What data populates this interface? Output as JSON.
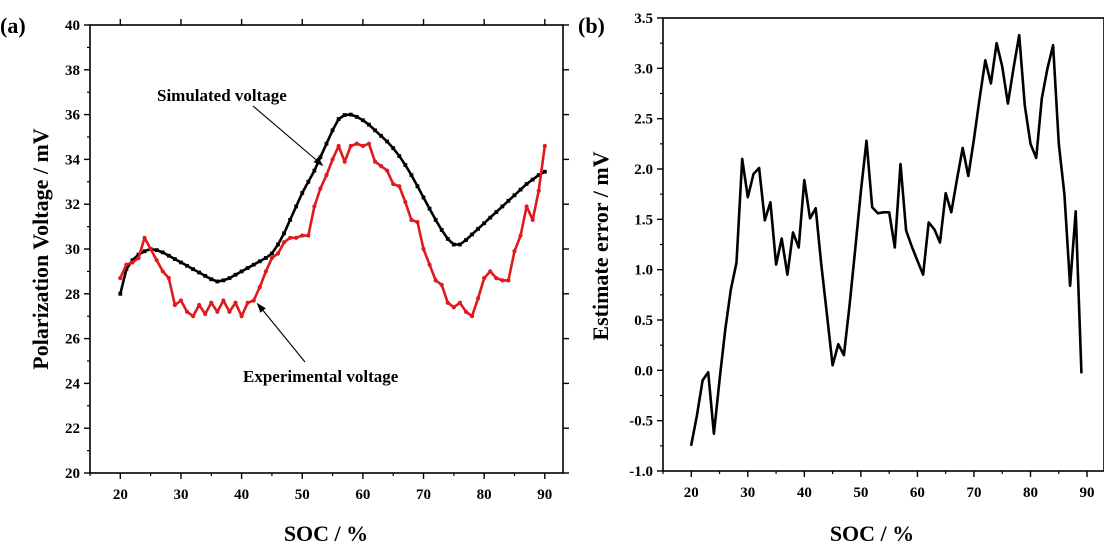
{
  "chart_data": [
    {
      "panel": "(a)",
      "type": "line",
      "xlabel": "SOC / %",
      "ylabel": "Polarization Voltage / mV",
      "xlim": [
        15,
        93
      ],
      "ylim": [
        20,
        40
      ],
      "xticks": [
        20,
        30,
        40,
        50,
        60,
        70,
        80,
        90
      ],
      "yticks": [
        20,
        22,
        24,
        26,
        28,
        30,
        32,
        34,
        36,
        38,
        40
      ],
      "grid": false,
      "annotations": [
        {
          "text": "Simulated voltage",
          "target_series": "simulated",
          "arrow_to": [
            53.5,
            33.7
          ]
        },
        {
          "text": "Experimental voltage",
          "target_series": "experimental",
          "arrow_to": [
            42.5,
            27.6
          ]
        }
      ],
      "series": [
        {
          "key": "simulated",
          "color": "#000000",
          "marker": "square",
          "x": [
            20,
            21,
            22,
            23,
            24,
            25,
            26,
            27,
            28,
            29,
            30,
            31,
            32,
            33,
            34,
            35,
            36,
            37,
            38,
            39,
            40,
            41,
            42,
            43,
            44,
            45,
            46,
            47,
            48,
            49,
            50,
            51,
            52,
            53,
            54,
            55,
            56,
            57,
            58,
            59,
            60,
            61,
            62,
            63,
            64,
            65,
            66,
            67,
            68,
            69,
            70,
            71,
            72,
            73,
            74,
            75,
            76,
            77,
            78,
            79,
            80,
            81,
            82,
            83,
            84,
            85,
            86,
            87,
            88,
            89,
            90
          ],
          "y": [
            28.0,
            29.1,
            29.5,
            29.75,
            29.9,
            30.0,
            29.95,
            29.85,
            29.7,
            29.55,
            29.4,
            29.25,
            29.1,
            28.95,
            28.8,
            28.65,
            28.55,
            28.6,
            28.7,
            28.85,
            29.0,
            29.15,
            29.3,
            29.45,
            29.6,
            29.8,
            30.2,
            30.7,
            31.3,
            31.9,
            32.5,
            33.0,
            33.5,
            34.1,
            34.7,
            35.3,
            35.8,
            35.98,
            36.0,
            35.9,
            35.75,
            35.55,
            35.3,
            35.05,
            34.8,
            34.5,
            34.15,
            33.75,
            33.3,
            32.8,
            32.3,
            31.8,
            31.3,
            30.85,
            30.45,
            30.2,
            30.2,
            30.4,
            30.65,
            30.9,
            31.15,
            31.4,
            31.65,
            31.9,
            32.15,
            32.4,
            32.65,
            32.9,
            33.1,
            33.3,
            33.45
          ]
        },
        {
          "key": "experimental",
          "color": "#e0191d",
          "marker": "circle",
          "x": [
            20,
            21,
            22,
            23,
            24,
            25,
            26,
            27,
            28,
            29,
            30,
            31,
            32,
            33,
            34,
            35,
            36,
            37,
            38,
            39,
            40,
            41,
            42,
            43,
            44,
            45,
            46,
            47,
            48,
            49,
            50,
            51,
            52,
            53,
            54,
            55,
            56,
            57,
            58,
            59,
            60,
            61,
            62,
            63,
            64,
            65,
            66,
            67,
            68,
            69,
            70,
            71,
            72,
            73,
            74,
            75,
            76,
            77,
            78,
            79,
            80,
            81,
            82,
            83,
            84,
            85,
            86,
            87,
            88,
            89,
            90
          ],
          "y": [
            28.7,
            29.3,
            29.4,
            29.6,
            30.5,
            30.0,
            29.5,
            29.0,
            28.7,
            27.5,
            27.7,
            27.2,
            27.0,
            27.5,
            27.1,
            27.6,
            27.2,
            27.7,
            27.2,
            27.6,
            27.0,
            27.6,
            27.7,
            28.3,
            29.0,
            29.6,
            29.8,
            30.3,
            30.5,
            30.5,
            30.6,
            30.6,
            31.9,
            32.7,
            33.3,
            34.0,
            34.6,
            33.9,
            34.6,
            34.7,
            34.6,
            34.7,
            33.9,
            33.7,
            33.5,
            32.9,
            32.8,
            32.1,
            31.3,
            31.2,
            30.0,
            29.3,
            28.6,
            28.4,
            27.6,
            27.4,
            27.6,
            27.2,
            27.0,
            27.8,
            28.7,
            29.0,
            28.7,
            28.6,
            28.6,
            29.9,
            30.6,
            31.9,
            31.3,
            32.6,
            34.6
          ]
        }
      ]
    },
    {
      "panel": "(b)",
      "type": "line",
      "xlabel": "SOC / %",
      "ylabel": "Estimate error / mV",
      "xlim": [
        15,
        93
      ],
      "ylim": [
        -1.0,
        3.5
      ],
      "xticks": [
        20,
        30,
        40,
        50,
        60,
        70,
        80,
        90
      ],
      "yticks": [
        -1.0,
        -0.5,
        0.0,
        0.5,
        1.0,
        1.5,
        2.0,
        2.5,
        3.0,
        3.5
      ],
      "ytick_labels": [
        "-1.0",
        "-0.5",
        "0.0",
        "0.5",
        "1.0",
        "1.5",
        "2.0",
        "2.5",
        "3.0",
        "3.5"
      ],
      "grid": false,
      "series": [
        {
          "color": "#000000",
          "marker": "none",
          "x": [
            20,
            21,
            22,
            23,
            24,
            25,
            26,
            27,
            28,
            29,
            30,
            31,
            32,
            33,
            34,
            35,
            36,
            37,
            38,
            39,
            40,
            41,
            42,
            43,
            44,
            45,
            46,
            47,
            48,
            49,
            50,
            51,
            52,
            53,
            54,
            55,
            56,
            57,
            58,
            59,
            60,
            61,
            62,
            63,
            64,
            65,
            66,
            67,
            68,
            69,
            70,
            71,
            72,
            73,
            74,
            75,
            76,
            77,
            78,
            79,
            80,
            81,
            82,
            83,
            84,
            85,
            86,
            87,
            88,
            89
          ],
          "y": [
            -0.74,
            -0.45,
            -0.1,
            -0.02,
            -0.63,
            -0.1,
            0.4,
            0.8,
            1.07,
            2.1,
            1.72,
            1.95,
            2.01,
            1.49,
            1.67,
            1.05,
            1.31,
            0.95,
            1.37,
            1.22,
            1.89,
            1.51,
            1.61,
            1.05,
            0.55,
            0.05,
            0.26,
            0.15,
            0.65,
            1.2,
            1.78,
            2.28,
            1.62,
            1.56,
            1.57,
            1.57,
            1.22,
            2.05,
            1.39,
            1.23,
            1.09,
            0.95,
            1.47,
            1.4,
            1.27,
            1.76,
            1.57,
            1.9,
            2.21,
            1.93,
            2.3,
            2.7,
            3.08,
            2.85,
            3.25,
            3.02,
            2.65,
            3.0,
            3.33,
            2.63,
            2.25,
            2.11,
            2.7,
            3.0,
            3.23,
            2.25,
            1.75,
            0.84,
            1.58,
            -0.02
          ]
        }
      ]
    }
  ]
}
